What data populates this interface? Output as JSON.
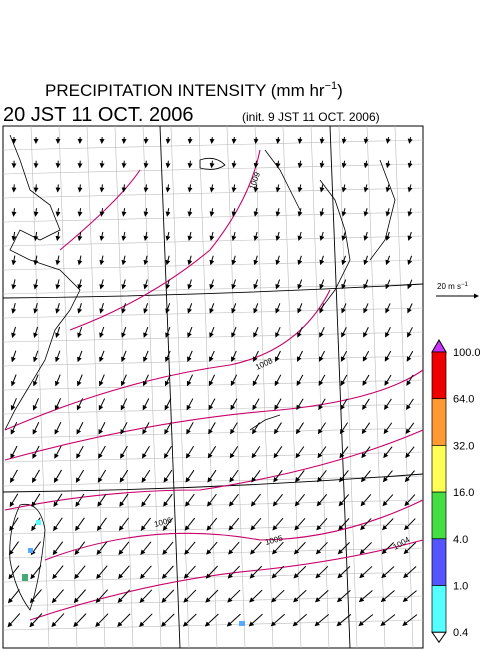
{
  "header": {
    "title": "PRECIPITATION INTENSITY (mm hr",
    "title_exponent": "−1",
    "title_close": ")",
    "valid_time": "20 JST 11 OCT. 2006",
    "init_time": "(init. 9 JST 11 OCT. 2006)"
  },
  "map": {
    "isobar_labels": [
      "1009",
      "1008",
      "1006",
      "1005",
      "1004"
    ]
  },
  "wind_scale": {
    "label": "20 m s",
    "exponent": "−1"
  },
  "colorbar": {
    "labels": [
      "100.0",
      "64.0",
      "32.0",
      "16.0",
      "4.0",
      "1.0",
      "0.4"
    ],
    "colors": [
      "#ee0000",
      "#ff9933",
      "#ffff55",
      "#44dd44",
      "#5555ff",
      "#55ffff"
    ],
    "over_color": "#cc33ff",
    "under_color": "#ffffff"
  }
}
